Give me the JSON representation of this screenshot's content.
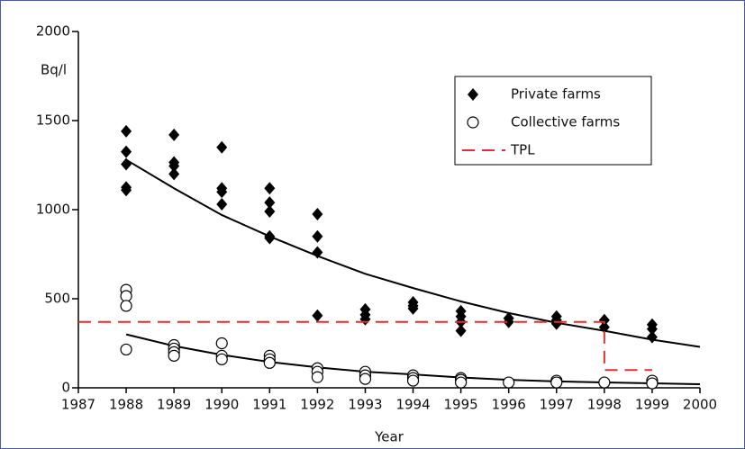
{
  "chart_data": {
    "type": "scatter",
    "y_label": "Bq/l",
    "x_label": "Year",
    "xlim": [
      1987,
      2000
    ],
    "xticks": [
      1987,
      1988,
      1989,
      1990,
      1991,
      1992,
      1993,
      1994,
      1995,
      1996,
      1997,
      1998,
      1999,
      2000
    ],
    "ylim": [
      0,
      2000
    ],
    "yticks": [
      0,
      500,
      1000,
      1500,
      2000
    ],
    "legend": "upper right",
    "series": [
      {
        "name": "Private farms",
        "color": "#000000",
        "marker": "diamond",
        "x": [
          1988,
          1988,
          1988,
          1988,
          1988,
          1989,
          1989,
          1989,
          1989,
          1990,
          1990,
          1990,
          1990,
          1991,
          1991,
          1991,
          1991,
          1991,
          1992,
          1992,
          1992,
          1992,
          1993,
          1993,
          1993,
          1994,
          1994,
          1994,
          1995,
          1995,
          1995,
          1995,
          1996,
          1996,
          1997,
          1997,
          1997,
          1998,
          1998,
          1999,
          1999,
          1999
        ],
        "values": [
          1440,
          1325,
          1255,
          1125,
          1110,
          1420,
          1265,
          1245,
          1200,
          1350,
          1120,
          1100,
          1030,
          1120,
          1040,
          990,
          850,
          840,
          975,
          850,
          760,
          405,
          440,
          410,
          385,
          480,
          460,
          445,
          430,
          400,
          370,
          320,
          390,
          370,
          400,
          380,
          360,
          380,
          340,
          355,
          330,
          285
        ]
      },
      {
        "name": "Collective farms",
        "color": "#000000",
        "marker": "circle",
        "x": [
          1988,
          1988,
          1988,
          1988,
          1989,
          1989,
          1989,
          1989,
          1990,
          1990,
          1990,
          1991,
          1991,
          1991,
          1992,
          1992,
          1992,
          1993,
          1993,
          1993,
          1994,
          1994,
          1994,
          1995,
          1995,
          1995,
          1996,
          1997,
          1997,
          1998,
          1999,
          1999
        ],
        "values": [
          550,
          515,
          460,
          215,
          240,
          220,
          200,
          180,
          250,
          180,
          160,
          180,
          160,
          140,
          110,
          90,
          60,
          90,
          70,
          50,
          70,
          55,
          40,
          55,
          45,
          30,
          30,
          40,
          30,
          30,
          40,
          25
        ]
      },
      {
        "name": "TPL",
        "color": "#e03030",
        "marker": "dashed-line",
        "x": [
          1987,
          1998,
          1998,
          1999
        ],
        "values": [
          370,
          370,
          100,
          100
        ]
      }
    ],
    "trend_lines": [
      {
        "color": "#000000",
        "x": [
          1988,
          1989,
          1990,
          1991,
          1992,
          1993,
          1994,
          1995,
          1996,
          1997,
          1998,
          1999,
          2000
        ],
        "values": [
          1280,
          1120,
          970,
          850,
          740,
          640,
          560,
          485,
          420,
          365,
          320,
          270,
          230
        ]
      },
      {
        "color": "#000000",
        "x": [
          1988,
          1989,
          1990,
          1991,
          1992,
          1993,
          1994,
          1995,
          1996,
          1997,
          1998,
          1999,
          2000
        ],
        "values": [
          300,
          235,
          185,
          145,
          115,
          90,
          75,
          58,
          45,
          36,
          30,
          25,
          20
        ]
      }
    ]
  }
}
